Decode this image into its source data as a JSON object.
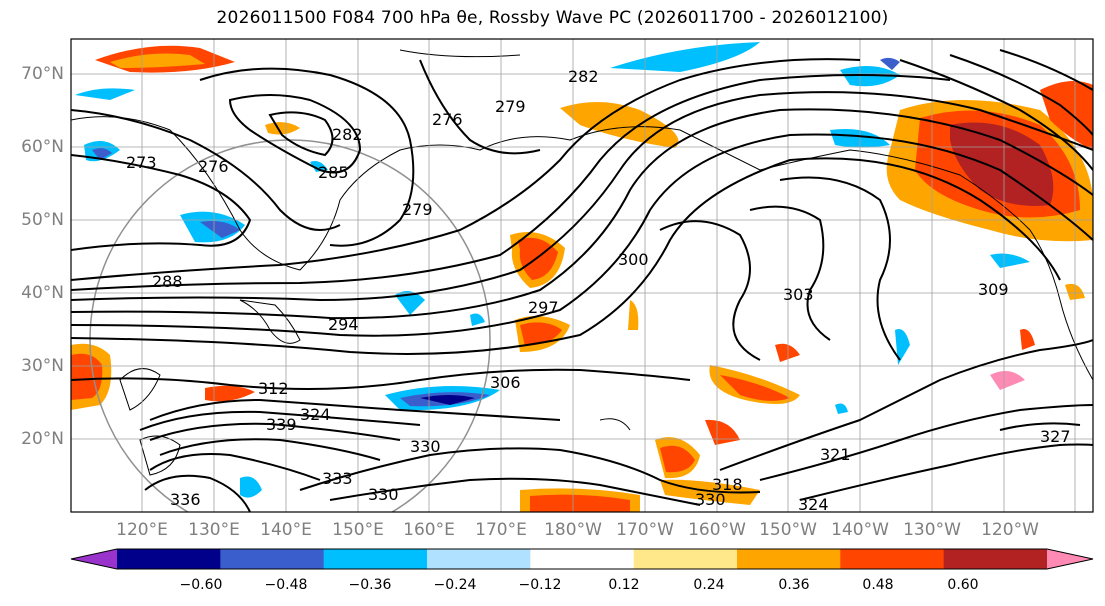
{
  "title": "2026011500 F084 700 hPa θe, Rossby Wave PC (2026011700 - 2026012100)",
  "lat_labels": [
    "70°N",
    "60°N",
    "50°N",
    "40°N",
    "30°N",
    "20°N"
  ],
  "lon_labels": [
    "120°E",
    "130°E",
    "140°E",
    "150°E",
    "160°E",
    "170°E",
    "180°W",
    "170°W",
    "160°W",
    "150°W",
    "140°W",
    "130°W",
    "120°W"
  ],
  "contour_labels": [
    "273",
    "276",
    "276",
    "279",
    "279",
    "282",
    "282",
    "285",
    "288",
    "294",
    "297",
    "300",
    "303",
    "306",
    "309",
    "312",
    "318",
    "321",
    "324",
    "324",
    "327",
    "330",
    "330",
    "333",
    "336",
    "339",
    "330"
  ],
  "colorbar": {
    "colors": [
      "#9933cc",
      "#00008b",
      "#3a5fcd",
      "#00bfff",
      "#b0e2ff",
      "#ffffff",
      "#ffe88a",
      "#ffa500",
      "#ff4500",
      "#b22222",
      "#ff8ab4"
    ],
    "ticks": [
      "−0.60",
      "−0.48",
      "−0.36",
      "−0.24",
      "−0.12",
      "0.12",
      "0.24",
      "0.36",
      "0.48",
      "0.60"
    ]
  },
  "palette": {
    "pos_low": "#ffe88a",
    "pos_mid": "#ffa500",
    "pos_high": "#ff4500",
    "pos_max": "#b22222",
    "neg_low": "#b0e2ff",
    "neg_mid": "#00bfff",
    "neg_high": "#3a5fcd",
    "neg_max": "#00008b"
  }
}
